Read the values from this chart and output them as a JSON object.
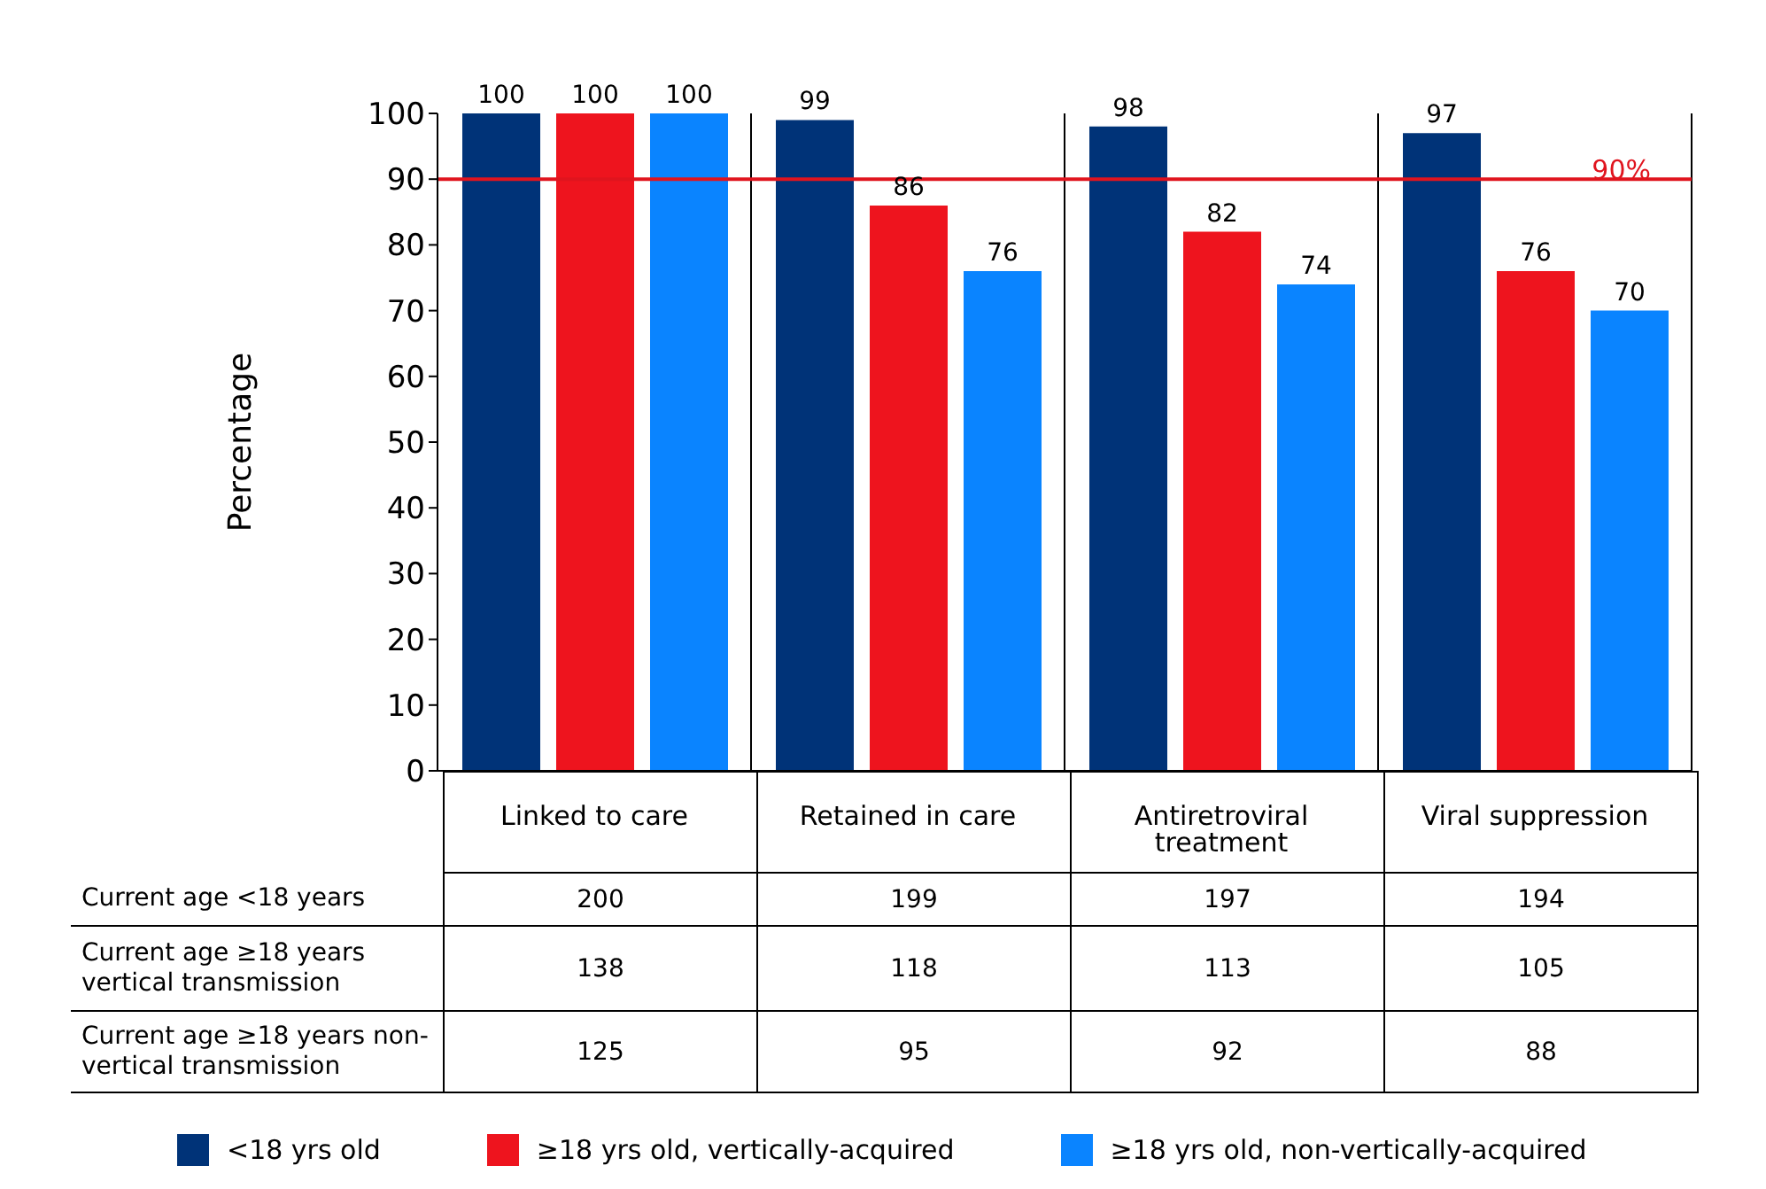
{
  "chart_data": {
    "type": "bar",
    "ylabel": "Percentage",
    "categories": [
      "Linked to care",
      "Retained in care",
      "Antiretroviral treatment",
      "Viral suppression"
    ],
    "series": [
      {
        "name": "<18 yrs old",
        "color": "#003378",
        "values": [
          100,
          99,
          98,
          97
        ]
      },
      {
        "name": "≥18 yrs old, vertically-acquired",
        "color": "#ee141e",
        "values": [
          100,
          86,
          82,
          76
        ]
      },
      {
        "name": "≥18 yrs old, non-vertically-acquired",
        "color": "#0a84ff",
        "values": [
          100,
          76,
          74,
          70
        ]
      }
    ],
    "ylim": [
      0,
      100
    ],
    "yticks": [
      0,
      10,
      20,
      30,
      40,
      50,
      60,
      70,
      80,
      90,
      100
    ],
    "grid": "x",
    "data_labels": true,
    "legend": "bottom",
    "ref_lines": [
      {
        "axis": "y",
        "value": 90,
        "label": "90%",
        "color": "#e0141e"
      }
    ],
    "annotations": [
      "Current age <18 years",
      "200",
      "199",
      "197",
      "194",
      "Current age ≥18 years vertical transmission",
      "138",
      "118",
      "113",
      "105",
      "Current age ≥18 years non-vertical transmission",
      "125",
      "95",
      "92",
      "88"
    ]
  }
}
